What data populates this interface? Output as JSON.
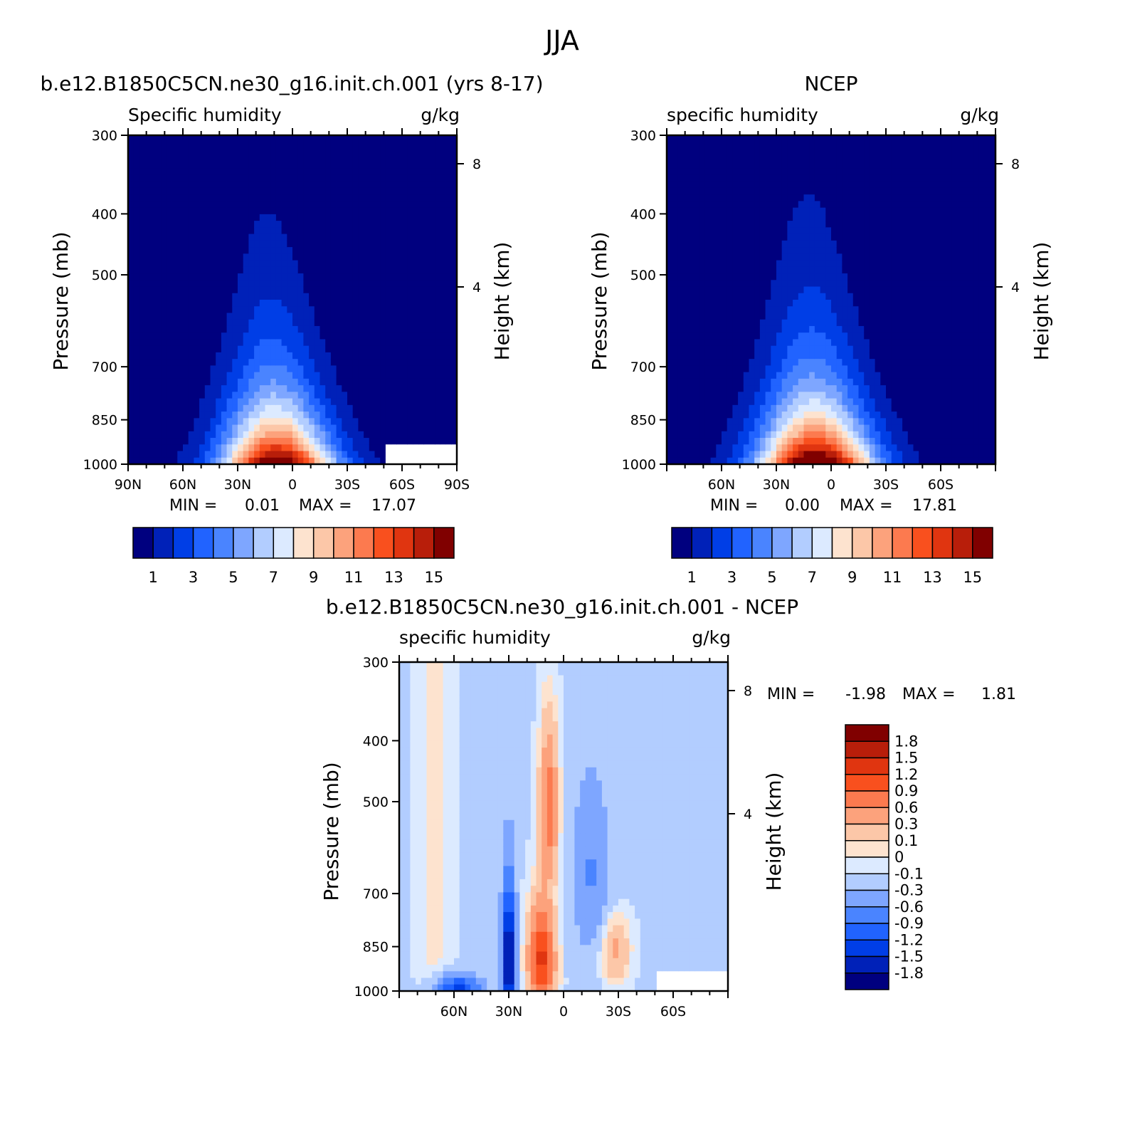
{
  "figure_title": "JJA",
  "colors": {
    "model_scale": [
      "#00007f",
      "#0021b8",
      "#003ee6",
      "#2163ff",
      "#4a84ff",
      "#7ea6ff",
      "#b2cdff",
      "#dceaff",
      "#fde3cf",
      "#fcc7a8",
      "#fca27c",
      "#fc7a4f",
      "#f9501e",
      "#e03510",
      "#b81e0a",
      "#800000"
    ],
    "diff_scale": [
      "#00007f",
      "#0021b8",
      "#003ee6",
      "#2163ff",
      "#4a84ff",
      "#7ea6ff",
      "#b2cdff",
      "#dceaff",
      "#fde3cf",
      "#fcc7a8",
      "#fca27c",
      "#fc7a4f",
      "#f9501e",
      "#e03510",
      "#b81e0a",
      "#800000"
    ],
    "missing": "#ffffff"
  },
  "chart_data": [
    {
      "type": "heatmap",
      "panel": "model",
      "title": "b.e12.B1850C5CN.ne30_g16.init.ch.001 (yrs 8-17)",
      "left_label": "Specific humidity",
      "right_label": "g/kg",
      "xlabel": "",
      "ylabel": "Pressure (mb)",
      "y2label": "Height (km)",
      "x_ticks": [
        "90N",
        "60N",
        "30N",
        "0",
        "30S",
        "60S",
        "90S"
      ],
      "y_ticks": [
        "300",
        "400",
        "500",
        "700",
        "850",
        "1000"
      ],
      "y2_ticks": [
        "8",
        "4"
      ],
      "xlim": [
        90,
        -90
      ],
      "ylim": [
        1000,
        300
      ],
      "y_scale": "log",
      "min_label": "MIN =",
      "min_value": "0.01",
      "max_label": "MAX =",
      "max_value": "17.07",
      "colorbar_labels": [
        "1",
        "3",
        "5",
        "7",
        "9",
        "11",
        "13",
        "15"
      ],
      "colorbar_levels": [
        1,
        2,
        3,
        4,
        5,
        6,
        7,
        8,
        9,
        10,
        11,
        12,
        13,
        14,
        15
      ],
      "missing_south_of": -50
    },
    {
      "type": "heatmap",
      "panel": "obs",
      "title": "NCEP",
      "left_label": "specific humidity",
      "right_label": "g/kg",
      "xlabel": "",
      "ylabel": "Pressure (mb)",
      "y2label": "Height (km)",
      "x_ticks": [
        "60N",
        "30N",
        "0",
        "30S",
        "60S"
      ],
      "y_ticks": [
        "300",
        "400",
        "500",
        "700",
        "850",
        "1000"
      ],
      "y2_ticks": [
        "8",
        "4"
      ],
      "xlim": [
        90,
        -90
      ],
      "ylim": [
        1000,
        300
      ],
      "y_scale": "log",
      "min_label": "MIN =",
      "min_value": "0.00",
      "max_label": "MAX =",
      "max_value": "17.81",
      "colorbar_labels": [
        "1",
        "3",
        "5",
        "7",
        "9",
        "11",
        "13",
        "15"
      ],
      "colorbar_levels": [
        1,
        2,
        3,
        4,
        5,
        6,
        7,
        8,
        9,
        10,
        11,
        12,
        13,
        14,
        15
      ]
    },
    {
      "type": "heatmap",
      "panel": "difference",
      "title": "b.e12.B1850C5CN.ne30_g16.init.ch.001 - NCEP",
      "left_label": "specific humidity",
      "right_label": "g/kg",
      "xlabel": "",
      "ylabel": "Pressure (mb)",
      "y2label": "Height (km)",
      "x_ticks": [
        "60N",
        "30N",
        "0",
        "30S",
        "60S"
      ],
      "y_ticks": [
        "300",
        "400",
        "500",
        "700",
        "850",
        "1000"
      ],
      "y2_ticks": [
        "8",
        "4"
      ],
      "xlim": [
        90,
        -90
      ],
      "ylim": [
        1000,
        300
      ],
      "y_scale": "log",
      "min_label": "MIN =",
      "min_value": "-1.98",
      "max_label": "MAX =",
      "max_value": "1.81",
      "colorbar_labels": [
        "1.8",
        "1.5",
        "1.2",
        "0.9",
        "0.6",
        "0.3",
        "0.1",
        "0",
        "-0.1",
        "-0.3",
        "-0.6",
        "-0.9",
        "-1.2",
        "-1.5",
        "-1.8"
      ],
      "colorbar_levels": [
        -1.8,
        -1.5,
        -1.2,
        -0.9,
        -0.6,
        -0.3,
        -0.1,
        0,
        0.1,
        0.3,
        0.6,
        0.9,
        1.2,
        1.5,
        1.8
      ],
      "missing_south_of": -50
    }
  ]
}
